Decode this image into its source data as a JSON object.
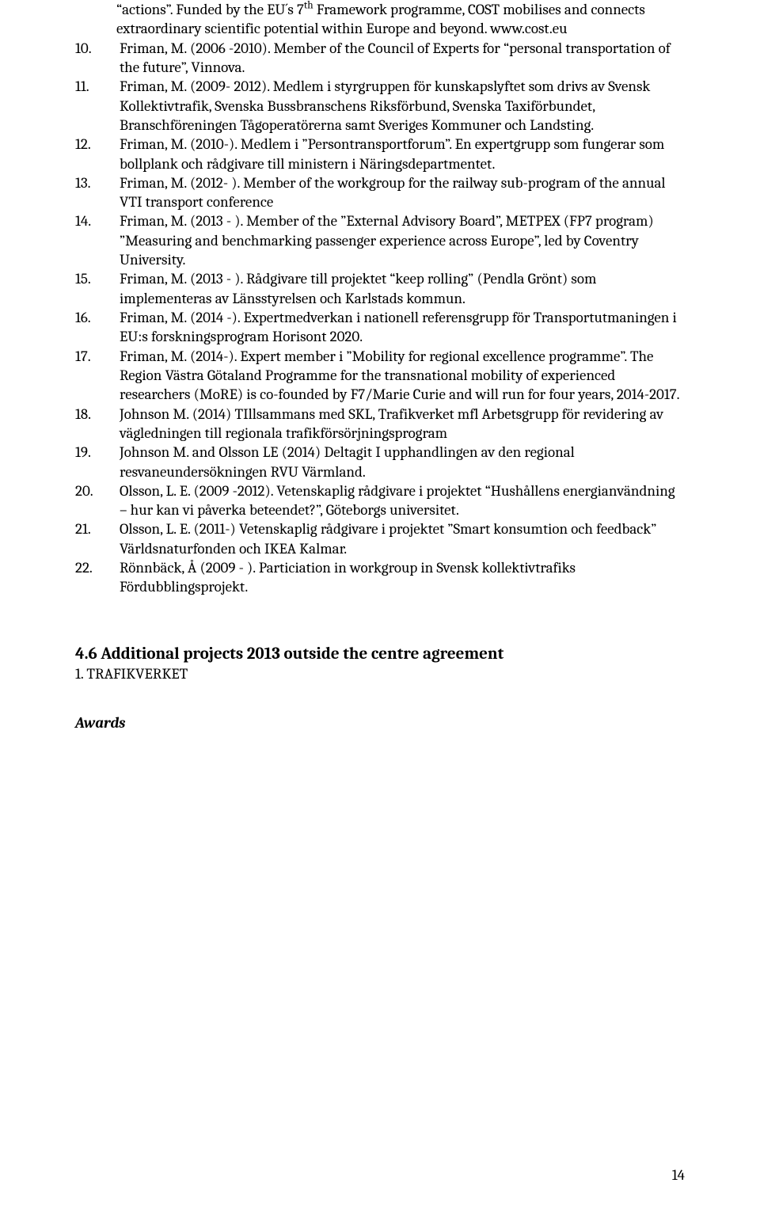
{
  "items": [
    {
      "num": "",
      "text": "“actions”. Funded by the EU´s 7<sup>th</sup> Framework programme, COST mobilises and connects extraordinary scientific potential within Europe and beyond. www.cost.eu"
    },
    {
      "num": "10.",
      "text": "Friman, M. (2006 -2010). Member of the Council of Experts for “personal transportation of the future”, Vinnova."
    },
    {
      "num": "11.",
      "text": "Friman, M. (2009- 2012). Medlem i styrgruppen för kunskapslyftet som drivs av Svensk Kollektivtrafik, Svenska Bussbranschens Riksförbund, Svenska Taxiförbundet, Branschföreningen Tågoperatörerna samt Sveriges Kommuner och Landsting."
    },
    {
      "num": "12.",
      "text": "Friman, M. (2010-). Medlem i ”Persontransportforum”. En expertgrupp som fungerar som bollplank och rådgivare till ministern i Näringsdepartmentet."
    },
    {
      "num": "13.",
      "text": "Friman, M. (2012- ). Member of the workgroup for the railway sub-program of the annual VTI transport conference"
    },
    {
      "num": "14.",
      "text": "Friman, M. (2013 - ). Member of the ”External Advisory Board”, METPEX (FP7 program) ”Measuring and benchmarking passenger experience across Europe”, led by Coventry University."
    },
    {
      "num": "15.",
      "text": "Friman, M. (2013 - ). Rådgivare till projektet “keep rolling” (Pendla Grönt) som implementeras av Länsstyrelsen och Karlstads kommun."
    },
    {
      "num": "16.",
      "text": "Friman, M. (2014 -). Expertmedverkan i nationell referensgrupp för Transportutmaningen i EU:s forskningsprogram Horisont 2020."
    },
    {
      "num": "17.",
      "text": "Friman, M. (2014-). Expert member i ”Mobility for regional excellence programme”. The Region Västra Götaland Programme for the transnational mobility of experienced researchers (MoRE) is co-founded by F7/Marie Curie and will run for four years, 2014-2017."
    },
    {
      "num": "18.",
      "text": "Johnson M. (2014) TIllsammans med SKL, Trafikverket mfl Arbetsgrupp för revidering av vägledningen till regionala trafikförsörjningsprogram"
    },
    {
      "num": "19.",
      "text": "Johnson M. and Olsson LE (2014) Deltagit I upphandlingen av den regional resvaneundersökningen RVU Värmland."
    },
    {
      "num": "20.",
      "text": "Olsson, L. E. (2009 -2012). Vetenskaplig rådgivare i projektet “Hushållens energianvändning – hur kan vi påverka beteendet?”, Göteborgs universitet."
    },
    {
      "num": "21.",
      "text": "Olsson, L. E. (2011-) Vetenskaplig rådgivare i projektet ”Smart konsumtion och feedback” Världsnaturfonden och IKEA Kalmar."
    },
    {
      "num": "22.",
      "text": "Rönnbäck, Å (2009 - ). Particiation in workgroup in Svensk kollektivtrafiks Fördubblingsprojekt."
    }
  ],
  "section_title": "4.6 Additional projects 2013 outside the centre agreement",
  "sub_line": "1. TRAFIKVERKET",
  "awards": "Awards",
  "page_number": "14"
}
